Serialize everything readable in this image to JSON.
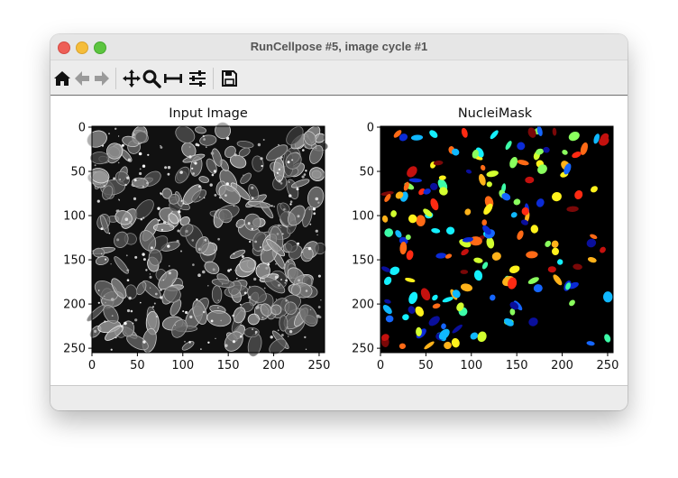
{
  "window": {
    "title": "RunCellpose #5, image cycle #1"
  },
  "toolbar": {
    "buttons": [
      {
        "name": "home-button",
        "icon": "home-icon",
        "enabled": true
      },
      {
        "name": "back-button",
        "icon": "arrow-left-icon",
        "enabled": false
      },
      {
        "name": "forward-button",
        "icon": "arrow-right-icon",
        "enabled": false
      },
      {
        "name": "pan-button",
        "icon": "move-icon",
        "enabled": true
      },
      {
        "name": "zoom-button",
        "icon": "magnifier-icon",
        "enabled": true
      },
      {
        "name": "subplots-button",
        "icon": "subplot-adjust-icon",
        "enabled": true
      },
      {
        "name": "customize-button",
        "icon": "sliders-icon",
        "enabled": true
      },
      {
        "name": "save-button",
        "icon": "save-icon",
        "enabled": true
      }
    ]
  },
  "figure": {
    "panels": [
      {
        "title": "Input Image",
        "colormap": "gray",
        "x_ticks": [
          "0",
          "50",
          "100",
          "150",
          "200",
          "250"
        ],
        "y_ticks": [
          "0",
          "50",
          "100",
          "150",
          "200",
          "250"
        ],
        "extent": [
          0,
          256
        ]
      },
      {
        "title": "NucleiMask",
        "colormap": "jet",
        "x_ticks": [
          "0",
          "50",
          "100",
          "150",
          "200",
          "250"
        ],
        "y_ticks": [
          "0",
          "50",
          "100",
          "150",
          "200",
          "250"
        ],
        "extent": [
          0,
          256
        ]
      }
    ]
  },
  "colors": {
    "background": "#000000",
    "mask_palette": [
      "#0b2bd6",
      "#1566ff",
      "#10b8ff",
      "#14f0ff",
      "#3dfca8",
      "#8aff5e",
      "#d2ff2f",
      "#fff21c",
      "#ffb21a",
      "#ff6a16",
      "#ff2a12",
      "#c4110e",
      "#7a0808",
      "#0a0f9c"
    ]
  }
}
